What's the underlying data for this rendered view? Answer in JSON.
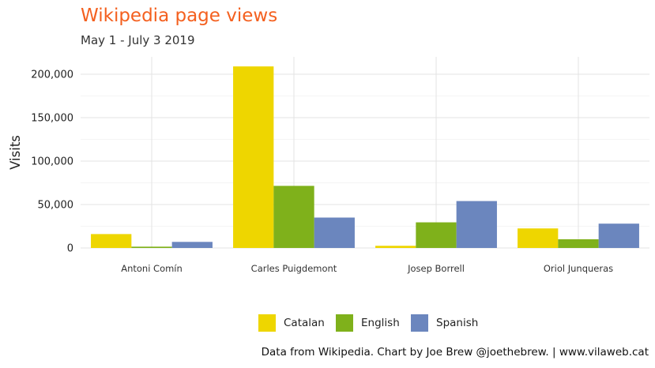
{
  "title": "Wikipedia page views",
  "subtitle": "May 1 - July 3 2019",
  "caption": "Data from Wikipedia. Chart by Joe Brew @joethebrew. | www.vilaweb.cat",
  "chart_data": {
    "type": "bar",
    "title": "Wikipedia page views",
    "subtitle": "May 1 - July 3 2019",
    "xlabel": "",
    "ylabel": "Visits",
    "categories": [
      "Antoni Comín",
      "Carles Puigdemont",
      "Josep Borrell",
      "Oriol Junqueras"
    ],
    "series": [
      {
        "name": "Catalan",
        "color": "#eed600",
        "values": [
          16000,
          209000,
          2500,
          22500
        ]
      },
      {
        "name": "English",
        "color": "#7fb11b",
        "values": [
          1500,
          71500,
          29500,
          10000
        ]
      },
      {
        "name": "Spanish",
        "color": "#6b86be",
        "values": [
          7000,
          35000,
          54000,
          28000
        ]
      }
    ],
    "ylim": [
      0,
      220000
    ],
    "yticks": [
      0,
      50000,
      100000,
      150000,
      200000
    ],
    "ytick_labels": [
      "0",
      "50,000",
      "100,000",
      "150,000",
      "200,000"
    ],
    "grid": true,
    "legend_position": "bottom"
  }
}
